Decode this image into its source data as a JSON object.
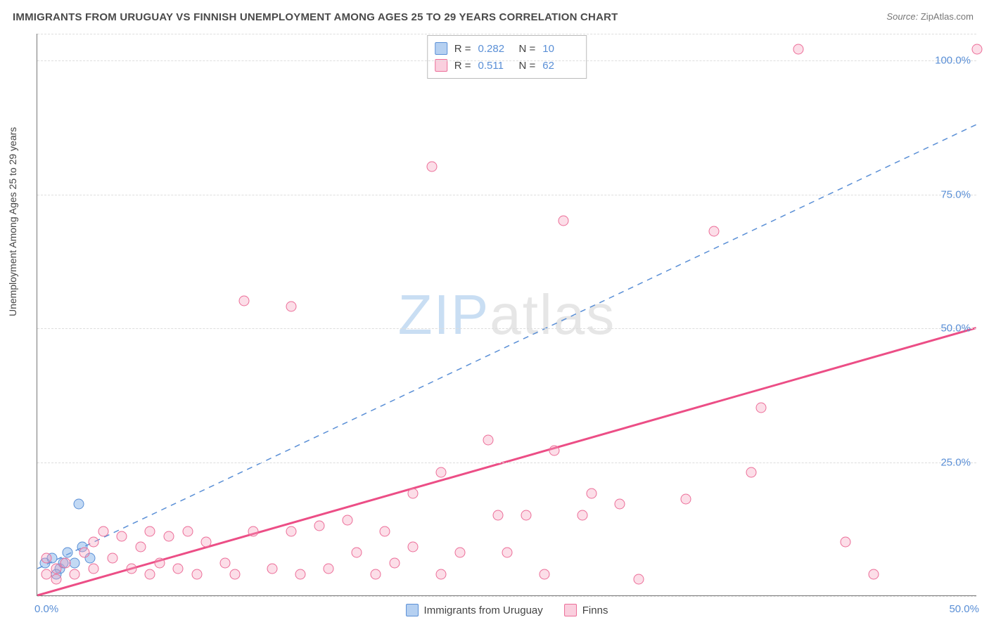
{
  "title": "IMMIGRANTS FROM URUGUAY VS FINNISH UNEMPLOYMENT AMONG AGES 25 TO 29 YEARS CORRELATION CHART",
  "source": {
    "label": "Source:",
    "value": "ZipAtlas.com"
  },
  "ylabel": "Unemployment Among Ages 25 to 29 years",
  "watermark": {
    "part1": "ZIP",
    "part2": "atlas"
  },
  "chart": {
    "type": "scatter",
    "xlim": [
      0,
      50
    ],
    "ylim": [
      0,
      105
    ],
    "x_ticks": [
      {
        "value": 0,
        "label": "0.0%"
      },
      {
        "value": 50,
        "label": "50.0%"
      }
    ],
    "y_ticks": [
      {
        "value": 25,
        "label": "25.0%"
      },
      {
        "value": 50,
        "label": "50.0%"
      },
      {
        "value": 75,
        "label": "75.0%"
      },
      {
        "value": 100,
        "label": "100.0%"
      }
    ],
    "gridlines_y": [
      0,
      25,
      50,
      75,
      100,
      105
    ],
    "background_color": "#ffffff",
    "grid_color": "#dddddd",
    "axis_color": "#777777",
    "tick_label_color": "#5a8fd6",
    "series": [
      {
        "id": "uruguay",
        "label": "Immigrants from Uruguay",
        "color_fill": "rgba(120,170,230,0.45)",
        "color_stroke": "#5a8fd6",
        "marker_size": 15,
        "R": "0.282",
        "N": "10",
        "trend": {
          "style": "dashed",
          "color": "#5a8fd6",
          "width": 1.5,
          "x1": 0,
          "y1": 5,
          "x2": 50,
          "y2": 88
        },
        "points": [
          {
            "x": 0.4,
            "y": 6
          },
          {
            "x": 0.8,
            "y": 7
          },
          {
            "x": 1.2,
            "y": 5
          },
          {
            "x": 1.6,
            "y": 8
          },
          {
            "x": 2.0,
            "y": 6
          },
          {
            "x": 2.4,
            "y": 9
          },
          {
            "x": 2.8,
            "y": 7
          },
          {
            "x": 1.0,
            "y": 4
          },
          {
            "x": 1.4,
            "y": 6
          },
          {
            "x": 2.2,
            "y": 17
          }
        ]
      },
      {
        "id": "finns",
        "label": "Finns",
        "color_fill": "rgba(245,160,190,0.35)",
        "color_stroke": "#ec6d98",
        "marker_size": 15,
        "R": "0.511",
        "N": "62",
        "trend": {
          "style": "solid",
          "color": "#ec4e86",
          "width": 3,
          "x1": 0,
          "y1": 0,
          "x2": 50,
          "y2": 50
        },
        "points": [
          {
            "x": 0.5,
            "y": 4
          },
          {
            "x": 0.5,
            "y": 7
          },
          {
            "x": 1.0,
            "y": 5
          },
          {
            "x": 1.0,
            "y": 3
          },
          {
            "x": 1.5,
            "y": 6
          },
          {
            "x": 2.0,
            "y": 4
          },
          {
            "x": 2.5,
            "y": 8
          },
          {
            "x": 3.0,
            "y": 5
          },
          {
            "x": 3.0,
            "y": 10
          },
          {
            "x": 3.5,
            "y": 12
          },
          {
            "x": 4.0,
            "y": 7
          },
          {
            "x": 4.5,
            "y": 11
          },
          {
            "x": 5.0,
            "y": 5
          },
          {
            "x": 5.5,
            "y": 9
          },
          {
            "x": 6.0,
            "y": 4
          },
          {
            "x": 6.0,
            "y": 12
          },
          {
            "x": 6.5,
            "y": 6
          },
          {
            "x": 7.0,
            "y": 11
          },
          {
            "x": 7.5,
            "y": 5
          },
          {
            "x": 8.0,
            "y": 12
          },
          {
            "x": 8.5,
            "y": 4
          },
          {
            "x": 9.0,
            "y": 10
          },
          {
            "x": 10.0,
            "y": 6
          },
          {
            "x": 10.5,
            "y": 4
          },
          {
            "x": 11.0,
            "y": 55
          },
          {
            "x": 11.5,
            "y": 12
          },
          {
            "x": 12.5,
            "y": 5
          },
          {
            "x": 13.5,
            "y": 54
          },
          {
            "x": 13.5,
            "y": 12
          },
          {
            "x": 14.0,
            "y": 4
          },
          {
            "x": 15.0,
            "y": 13
          },
          {
            "x": 15.5,
            "y": 5
          },
          {
            "x": 16.5,
            "y": 14
          },
          {
            "x": 17.0,
            "y": 8
          },
          {
            "x": 18.0,
            "y": 4
          },
          {
            "x": 18.5,
            "y": 12
          },
          {
            "x": 19.0,
            "y": 6
          },
          {
            "x": 20.0,
            "y": 9
          },
          {
            "x": 20.0,
            "y": 19
          },
          {
            "x": 21.0,
            "y": 80
          },
          {
            "x": 21.5,
            "y": 23
          },
          {
            "x": 21.5,
            "y": 4
          },
          {
            "x": 22.5,
            "y": 8
          },
          {
            "x": 24.0,
            "y": 29
          },
          {
            "x": 24.5,
            "y": 15
          },
          {
            "x": 25.0,
            "y": 8
          },
          {
            "x": 26.0,
            "y": 15
          },
          {
            "x": 27.0,
            "y": 4
          },
          {
            "x": 27.5,
            "y": 27
          },
          {
            "x": 28.0,
            "y": 70
          },
          {
            "x": 29.0,
            "y": 15
          },
          {
            "x": 29.5,
            "y": 19
          },
          {
            "x": 31.0,
            "y": 17
          },
          {
            "x": 32.0,
            "y": 3
          },
          {
            "x": 34.5,
            "y": 18
          },
          {
            "x": 36.0,
            "y": 68
          },
          {
            "x": 38.0,
            "y": 23
          },
          {
            "x": 38.5,
            "y": 35
          },
          {
            "x": 40.5,
            "y": 102
          },
          {
            "x": 43.0,
            "y": 10
          },
          {
            "x": 44.5,
            "y": 4
          },
          {
            "x": 50.0,
            "y": 102
          }
        ]
      }
    ],
    "legend_top": {
      "rows": [
        {
          "swatch": "blue",
          "r_label": "R =",
          "r_value": "0.282",
          "n_label": "N =",
          "n_value": "10"
        },
        {
          "swatch": "pink",
          "r_label": "R =",
          "r_value": "0.511",
          "n_label": "N =",
          "n_value": "62"
        }
      ]
    },
    "legend_bottom": [
      {
        "swatch": "blue",
        "label": "Immigrants from Uruguay"
      },
      {
        "swatch": "pink",
        "label": "Finns"
      }
    ]
  }
}
